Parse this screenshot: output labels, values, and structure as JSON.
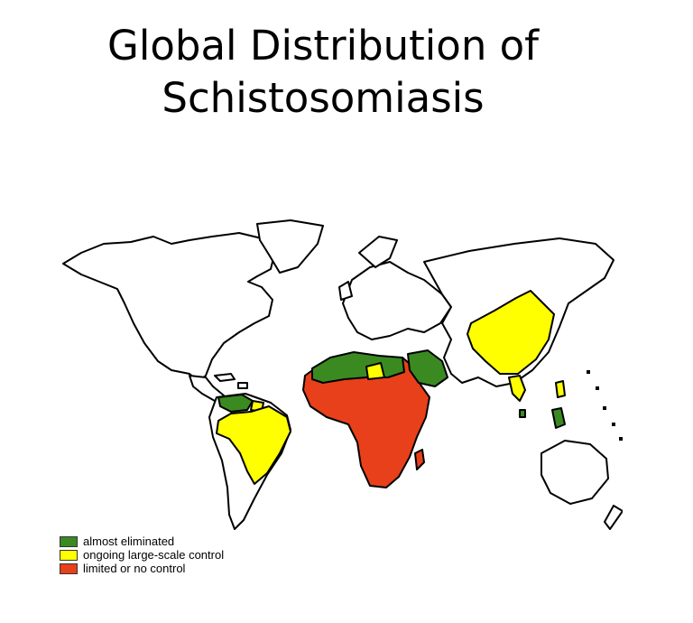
{
  "title": {
    "line1": "Global Distribution of",
    "line2": "Schistosomiasis"
  },
  "legend": {
    "items": [
      {
        "label": "almost eliminated",
        "color": "#3b8a21"
      },
      {
        "label": "ongoing large-scale control",
        "color": "#ffff00"
      },
      {
        "label": "limited or no control",
        "color": "#e8401a"
      }
    ]
  },
  "map": {
    "default_color": "#ffffff",
    "border_color": "#000000"
  }
}
